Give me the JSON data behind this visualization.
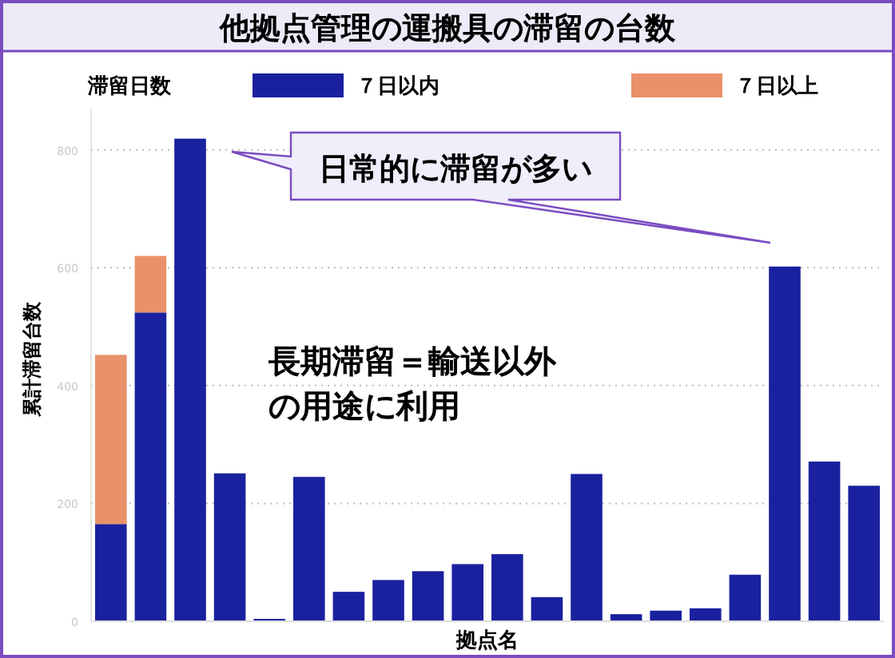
{
  "chart_data": {
    "type": "bar",
    "title": "他拠点管理の運搬具の滞留の台数",
    "xlabel": "拠点名",
    "ylabel": "累計滞留台数",
    "legend_title": "滞留日数",
    "categories": [
      null,
      null,
      null,
      null,
      null,
      null,
      null,
      null,
      null,
      null,
      null,
      null,
      null,
      null,
      null,
      null,
      null,
      null,
      null,
      null
    ],
    "stacked": true,
    "series": [
      {
        "name": "７日以内",
        "color": "#1a219e",
        "values": [
          165,
          524,
          819,
          251,
          4,
          245,
          50,
          70,
          85,
          97,
          114,
          41,
          250,
          12,
          18,
          22,
          79,
          602,
          271,
          230
        ]
      },
      {
        "name": "７日以上",
        "color": "#e8916a",
        "values": [
          287,
          96,
          0,
          0,
          0,
          0,
          0,
          0,
          0,
          0,
          0,
          0,
          0,
          0,
          0,
          0,
          0,
          0,
          0,
          0
        ]
      }
    ],
    "ylim": [
      0,
      870
    ],
    "yticks": [
      0,
      200,
      400,
      600,
      800
    ],
    "grid": "y",
    "legend": "top",
    "annotations": [
      "日常的に滞留が多い",
      "長期滞留＝輸送以外",
      "の用途に利用"
    ]
  }
}
